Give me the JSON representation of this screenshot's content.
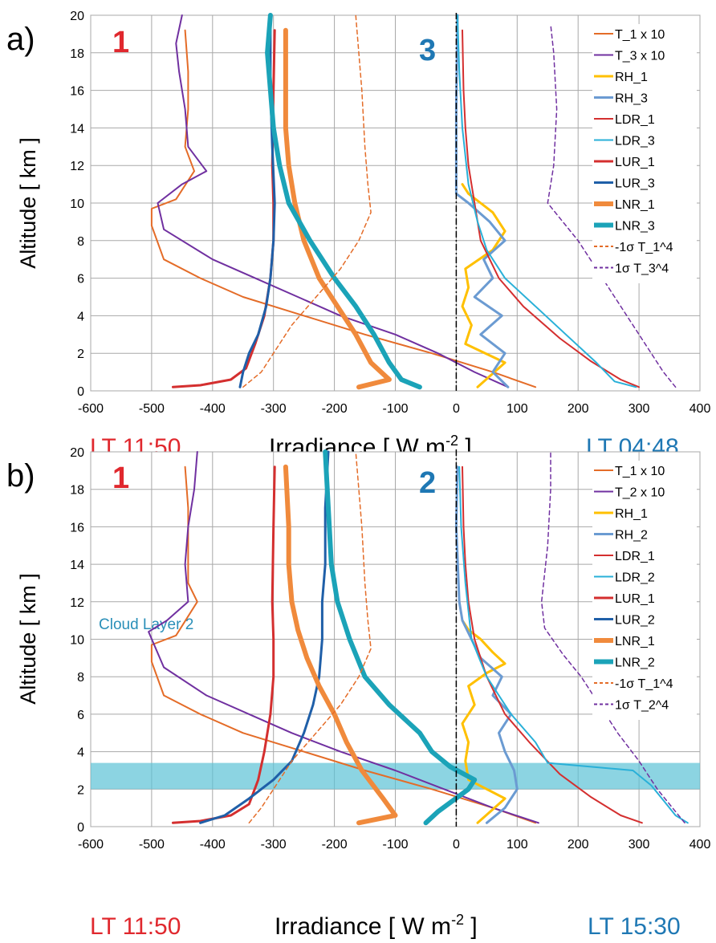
{
  "chart_data": [
    {
      "type": "line",
      "panel_label": "a)",
      "ylabel": "Altitude [ km ]",
      "xlabel_main": "Irradiance [ W m",
      "xlabel_sup": "-2",
      "xlabel_end": " ]",
      "left_time": "LT 11:50",
      "right_time": "LT 04:48",
      "label_left": "1",
      "label_right": "3",
      "xlim": [
        -600,
        400
      ],
      "ylim": [
        0,
        20
      ],
      "xticks": [
        -600,
        -500,
        -400,
        -300,
        -200,
        -100,
        0,
        100,
        200,
        300,
        400
      ],
      "yticks": [
        0,
        2,
        4,
        6,
        8,
        10,
        12,
        14,
        16,
        18,
        20
      ],
      "cloud_layer": null,
      "series": [
        {
          "name": "T_1 x 10",
          "color": "#E46C28",
          "width": 2,
          "dash": "",
          "x": [
            130,
            60,
            -40,
            -150,
            -250,
            -350,
            -420,
            -480,
            -500,
            -500,
            -460,
            -430,
            -445,
            -440,
            -440,
            -445
          ],
          "y": [
            0.2,
            1,
            2,
            3,
            4,
            5,
            6,
            7,
            8.8,
            9.7,
            10.2,
            11.7,
            13,
            15,
            17,
            19.2
          ]
        },
        {
          "name": "T_3 x 10",
          "color": "#7030A0",
          "width": 2,
          "dash": "",
          "x": [
            85,
            30,
            -30,
            -100,
            -190,
            -260,
            -330,
            -400,
            -480,
            -490,
            -450,
            -410,
            -440,
            -445,
            -455,
            -460,
            -450
          ],
          "y": [
            0.2,
            1,
            2,
            3,
            4,
            5,
            6,
            7,
            8.6,
            10,
            11,
            11.7,
            13,
            15,
            17,
            18.5,
            20
          ]
        },
        {
          "name": "RH_1",
          "color": "#FFC000",
          "width": 3,
          "dash": "",
          "x": [
            35,
            80,
            15,
            25,
            10,
            20,
            15,
            60,
            80,
            60,
            40,
            20,
            10
          ],
          "y": [
            0.2,
            1.5,
            2.5,
            3.5,
            4.5,
            5.5,
            6.5,
            7.5,
            8.5,
            9.5,
            10,
            10.5,
            11
          ]
        },
        {
          "name": "RH_3",
          "color": "#6B9BD2",
          "width": 3,
          "dash": "",
          "x": [
            85,
            60,
            80,
            40,
            75,
            30,
            60,
            45,
            80,
            55,
            20,
            0,
            0,
            2
          ],
          "y": [
            0.2,
            1,
            2,
            3,
            4,
            5,
            6,
            7,
            8,
            9,
            10,
            10.5,
            15,
            20
          ]
        },
        {
          "name": "LDR_1",
          "color": "#D42F2F",
          "width": 2,
          "dash": "",
          "x": [
            300,
            270,
            220,
            170,
            110,
            70,
            40,
            30,
            20,
            15,
            12,
            10
          ],
          "y": [
            0.2,
            0.6,
            1.6,
            2.8,
            4.5,
            6,
            8,
            10,
            12,
            14,
            16,
            19.2
          ]
        },
        {
          "name": "LDR_3",
          "color": "#29B0D8",
          "width": 2,
          "dash": "",
          "x": [
            295,
            260,
            230,
            180,
            130,
            80,
            50,
            35,
            20,
            10,
            5,
            2
          ],
          "y": [
            0.2,
            0.5,
            1.5,
            3,
            4.5,
            6,
            7.5,
            9,
            11,
            14,
            17,
            20
          ]
        },
        {
          "name": "LUR_1",
          "color": "#D42F2F",
          "width": 3,
          "dash": "",
          "x": [
            -465,
            -420,
            -370,
            -345,
            -330,
            -315,
            -305,
            -300,
            -300,
            -302,
            -300,
            -298
          ],
          "y": [
            0.2,
            0.3,
            0.6,
            1.2,
            2.5,
            4,
            6,
            8,
            10,
            12,
            16,
            19.2
          ]
        },
        {
          "name": "LUR_3",
          "color": "#1F5FA8",
          "width": 3,
          "dash": "",
          "x": [
            -355,
            -350,
            -340,
            -325,
            -312,
            -305,
            -300,
            -298,
            -302,
            -305,
            -305
          ],
          "y": [
            0.2,
            1,
            2,
            3,
            4.5,
            6,
            8,
            10,
            13,
            16,
            20
          ]
        },
        {
          "name": "LNR_1",
          "color": "#F08A3C",
          "width": 6,
          "dash": "",
          "x": [
            -160,
            -110,
            -140,
            -165,
            -195,
            -225,
            -250,
            -265,
            -275,
            -280,
            -280,
            -280
          ],
          "y": [
            0.2,
            0.6,
            1.5,
            3,
            4.5,
            6,
            8,
            10,
            12,
            14,
            16,
            19.2
          ]
        },
        {
          "name": "LNR_3",
          "color": "#1BA3B8",
          "width": 6,
          "dash": "",
          "x": [
            -60,
            -90,
            -110,
            -135,
            -165,
            -200,
            -240,
            -275,
            -290,
            -300,
            -305,
            -310,
            -305
          ],
          "y": [
            0.2,
            0.6,
            1.5,
            3,
            4.5,
            6,
            8,
            10,
            12,
            14,
            16,
            18,
            20
          ]
        },
        {
          "name": "-1σ T_1^4",
          "color": "#E46C28",
          "width": 1.5,
          "dash": "5,4",
          "x": [
            -350,
            -320,
            -300,
            -270,
            -230,
            -190,
            -160,
            -140,
            -145,
            -150,
            -155,
            -160,
            -165
          ],
          "y": [
            0.2,
            1,
            2,
            3.5,
            5,
            6.5,
            8,
            9.5,
            11,
            13,
            16,
            18,
            20
          ]
        },
        {
          "name": "1σ T_3^4",
          "color": "#7030A0",
          "width": 1.5,
          "dash": "5,4",
          "x": [
            360,
            340,
            320,
            290,
            260,
            230,
            200,
            175,
            150,
            160,
            165,
            160,
            155
          ],
          "y": [
            0.2,
            1,
            2,
            3.5,
            5,
            6.5,
            8,
            9,
            10,
            12,
            15,
            18,
            19.5
          ]
        }
      ]
    },
    {
      "type": "line",
      "panel_label": "b)",
      "ylabel": "Altitude [ km ]",
      "xlabel_main": "Irradiance [ W m",
      "xlabel_sup": "-2",
      "xlabel_end": " ]",
      "left_time": "LT 11:50",
      "right_time": "LT 15:30",
      "label_left": "1",
      "label_right": "2",
      "xlim": [
        -600,
        400
      ],
      "ylim": [
        0,
        20
      ],
      "xticks": [
        -600,
        -500,
        -400,
        -300,
        -200,
        -100,
        0,
        100,
        200,
        300,
        400
      ],
      "yticks": [
        0,
        2,
        4,
        6,
        8,
        10,
        12,
        14,
        16,
        18,
        20
      ],
      "cloud_layer": {
        "label": "Cloud Layer 2",
        "bottom": 2,
        "top": 3.4
      },
      "series": [
        {
          "name": "T_1 x 10",
          "color": "#E46C28",
          "width": 2,
          "dash": "",
          "x": [
            130,
            60,
            -40,
            -150,
            -250,
            -350,
            -420,
            -480,
            -500,
            -500,
            -460,
            -425,
            -440,
            -440,
            -440,
            -445
          ],
          "y": [
            0.2,
            1,
            2,
            3,
            4,
            5,
            6,
            7,
            8.8,
            9.7,
            10.2,
            12,
            13,
            15,
            17,
            19.2
          ]
        },
        {
          "name": "T_2 x 10",
          "color": "#7030A0",
          "width": 2,
          "dash": "",
          "x": [
            135,
            60,
            -20,
            -100,
            -190,
            -270,
            -340,
            -410,
            -480,
            -505,
            -475,
            -440,
            -445,
            -440,
            -430,
            -425
          ],
          "y": [
            0.2,
            1,
            2,
            3,
            4,
            5,
            6,
            7,
            8.5,
            10.4,
            11,
            12,
            14,
            16,
            18,
            20
          ]
        },
        {
          "name": "RH_1",
          "color": "#FFC000",
          "width": 3,
          "dash": "",
          "x": [
            35,
            80,
            20,
            15,
            20,
            10,
            30,
            20,
            50,
            80,
            60,
            40,
            20,
            10
          ],
          "y": [
            0.2,
            1.5,
            2.5,
            3.5,
            4.5,
            5.5,
            6.5,
            7.5,
            8.2,
            8.7,
            9.3,
            10,
            10.5,
            11
          ]
        },
        {
          "name": "RH_2",
          "color": "#6B9BD2",
          "width": 3,
          "dash": "",
          "x": [
            50,
            80,
            100,
            95,
            80,
            70,
            90,
            60,
            75,
            40,
            25,
            10,
            5,
            0,
            2
          ],
          "y": [
            0.2,
            1,
            2,
            3,
            4,
            5,
            6,
            7,
            8,
            9,
            10,
            11,
            12,
            16,
            19.2
          ]
        },
        {
          "name": "LDR_1",
          "color": "#D42F2F",
          "width": 2,
          "dash": "",
          "x": [
            305,
            270,
            220,
            170,
            120,
            80,
            50,
            30,
            20,
            15,
            12,
            10
          ],
          "y": [
            0.2,
            0.6,
            1.6,
            2.8,
            4.5,
            6,
            8,
            10,
            12,
            14,
            16,
            19.2
          ]
        },
        {
          "name": "LDR_2",
          "color": "#29B0D8",
          "width": 2,
          "dash": "",
          "x": [
            380,
            360,
            340,
            320,
            290,
            150,
            130,
            90,
            50,
            25,
            15,
            8,
            5
          ],
          "y": [
            0.2,
            0.6,
            1.4,
            2.2,
            3,
            3.4,
            4.5,
            6,
            8,
            10,
            13,
            16,
            19.2
          ]
        },
        {
          "name": "LUR_1",
          "color": "#D42F2F",
          "width": 3,
          "dash": "",
          "x": [
            -465,
            -420,
            -370,
            -340,
            -325,
            -315,
            -305,
            -300,
            -300,
            -302,
            -300,
            -298
          ],
          "y": [
            0.2,
            0.3,
            0.6,
            1.2,
            2.5,
            4,
            6,
            8,
            10,
            12,
            16,
            19.2
          ]
        },
        {
          "name": "LUR_2",
          "color": "#1F5FA8",
          "width": 3,
          "dash": "",
          "x": [
            -420,
            -380,
            -340,
            -300,
            -270,
            -250,
            -235,
            -225,
            -220,
            -220,
            -215,
            -215,
            -210
          ],
          "y": [
            0.2,
            0.6,
            1.5,
            2.5,
            3.5,
            5,
            6.5,
            8,
            10,
            12,
            14,
            17,
            20
          ]
        },
        {
          "name": "LNR_1",
          "color": "#F08A3C",
          "width": 6,
          "dash": "",
          "x": [
            -160,
            -100,
            -120,
            -155,
            -180,
            -200,
            -225,
            -245,
            -260,
            -270,
            -275,
            -275,
            -280
          ],
          "y": [
            0.2,
            0.6,
            1.5,
            3,
            4.5,
            6,
            7.5,
            9,
            10.5,
            12,
            14,
            16,
            19.2
          ]
        },
        {
          "name": "LNR_2",
          "color": "#1BA3B8",
          "width": 6,
          "dash": "",
          "x": [
            -50,
            -30,
            20,
            30,
            -10,
            -40,
            -60,
            -110,
            -150,
            -175,
            -195,
            -205,
            -210,
            -215
          ],
          "y": [
            0.2,
            0.8,
            2,
            2.5,
            3.2,
            4,
            5,
            6.5,
            8,
            10,
            12,
            14,
            17,
            20
          ]
        },
        {
          "name": "-1σ T_1^4",
          "color": "#E46C28",
          "width": 1.5,
          "dash": "5,4",
          "x": [
            -340,
            -320,
            -300,
            -270,
            -230,
            -190,
            -160,
            -140,
            -145,
            -150,
            -155,
            -160,
            -165
          ],
          "y": [
            0.2,
            1,
            2,
            3.5,
            5,
            6.5,
            8,
            9.5,
            11,
            13,
            16,
            18,
            20
          ]
        },
        {
          "name": "1σ T_2^4",
          "color": "#7030A0",
          "width": 1.5,
          "dash": "5,4",
          "x": [
            375,
            355,
            330,
            300,
            265,
            235,
            205,
            175,
            145,
            140,
            150,
            155,
            155
          ],
          "y": [
            0.2,
            1,
            2,
            3.5,
            5,
            6.5,
            8,
            9.2,
            10.6,
            12,
            15,
            18,
            20
          ]
        }
      ]
    }
  ],
  "legend_labels_a": [
    "T_1 x 10",
    "T_3 x 10",
    "RH_1",
    "RH_3",
    "LDR_1",
    "LDR_3",
    "LUR_1",
    "LUR_3",
    "LNR_1",
    "LNR_3",
    "-1σ T_1^4",
    " 1σ T_3^4"
  ],
  "legend_labels_b": [
    "T_1 x 10",
    "T_2 x 10",
    "RH_1",
    "RH_2",
    "LDR_1",
    "LDR_2",
    "LUR_1",
    "LUR_2",
    "LNR_1",
    "LNR_2",
    "-1σ T_1^4",
    " 1σ T_2^4"
  ],
  "colors": {
    "red_label": "#E0282E",
    "blue_label": "#1F78B4",
    "cloud_fill": "#5BC2D6",
    "cloud_text": "#2A8FB8"
  }
}
